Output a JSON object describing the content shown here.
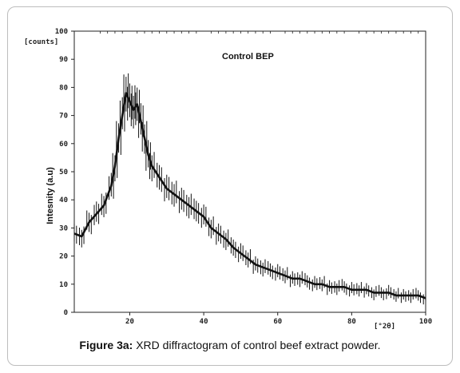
{
  "chart_data": {
    "type": "line",
    "annotation": "Control BEP",
    "ylabel": "Intesnity (a.u)",
    "y_unit_label": "[counts]",
    "x_unit_label": "[°2θ]",
    "xlim": [
      5,
      100
    ],
    "ylim": [
      0,
      100
    ],
    "x_ticks": [
      20,
      40,
      60,
      80,
      100
    ],
    "x_tick_labels": [
      "20",
      "40",
      "60",
      "80",
      "100"
    ],
    "y_ticks": [
      0,
      10,
      20,
      30,
      40,
      50,
      60,
      70,
      80,
      90,
      100
    ],
    "y_tick_labels": [
      "0",
      "10",
      "20",
      "30",
      "40",
      "50",
      "60",
      "70",
      "80",
      "90",
      "100"
    ],
    "grid": false,
    "color": "#111111",
    "series": [
      {
        "x": [
          5,
          7,
          9,
          11,
          13,
          15,
          16,
          17,
          18,
          19,
          20,
          21,
          22,
          23,
          24,
          25,
          26,
          28,
          30,
          32,
          34,
          36,
          38,
          40,
          42,
          44,
          46,
          48,
          50,
          52,
          54,
          56,
          58,
          60,
          62,
          64,
          66,
          68,
          70,
          72,
          74,
          76,
          78,
          80,
          82,
          84,
          86,
          88,
          90,
          92,
          94,
          96,
          98,
          100
        ],
        "y": [
          28,
          27,
          32,
          35,
          38,
          45,
          52,
          62,
          70,
          78,
          75,
          72,
          74,
          68,
          62,
          56,
          52,
          48,
          44,
          42,
          40,
          38,
          36,
          34,
          30,
          28,
          26,
          23,
          21,
          19,
          17,
          16,
          15,
          14,
          13,
          12,
          12,
          11,
          10,
          10,
          9,
          9,
          9,
          8,
          8,
          8,
          7,
          7,
          7,
          6,
          6,
          6,
          6,
          5
        ]
      }
    ]
  },
  "caption": {
    "label": "Figure 3a:",
    "text": " XRD diffractogram of control beef extract powder."
  }
}
